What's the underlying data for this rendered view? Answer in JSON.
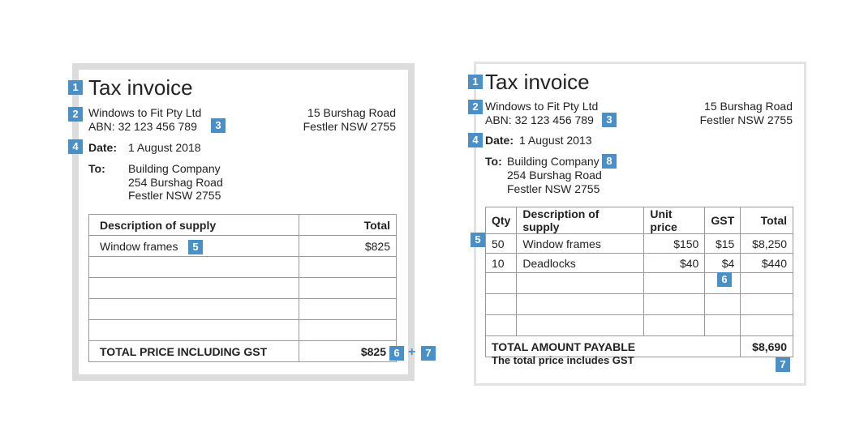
{
  "badges": {
    "b1": "1",
    "b2": "2",
    "b3": "3",
    "b4": "4",
    "b5": "5",
    "b6": "6",
    "b7": "7",
    "b8": "8"
  },
  "connector": "+",
  "left": {
    "title": "Tax invoice",
    "company": "Windows to Fit Pty Ltd",
    "abn": "ABN: 32 123 456 789",
    "address_line1": "15 Burshag Road",
    "address_line2": "Festler NSW 2755",
    "date_label": "Date:",
    "date_value": "1 August 2018",
    "to_label": "To:",
    "to_lines": [
      "Building Company",
      "254 Burshag Road",
      "Festler NSW 2755"
    ],
    "table": {
      "header_desc": "Description of supply",
      "header_total": "Total",
      "row_desc": "Window frames",
      "row_total": "$825",
      "footer_label": "TOTAL PRICE INCLUDING GST",
      "footer_total": "$825"
    }
  },
  "right": {
    "title": "Tax invoice",
    "company": "Windows to Fit Pty Ltd",
    "abn": "ABN: 32 123 456 789",
    "address_line1": "15 Burshag Road",
    "address_line2": "Festler NSW 2755",
    "date_label": "Date:",
    "date_value": "1 August 2013",
    "to_label": "To:",
    "to_lines": [
      "Building Company",
      "254 Burshag Road",
      "Festler NSW 2755"
    ],
    "table": {
      "headers": [
        "Qty",
        "Description of supply",
        "Unit price",
        "GST",
        "Total"
      ],
      "rows": [
        [
          "50",
          "Window frames",
          "$150",
          "$15",
          "$8,250"
        ],
        [
          "10",
          "Deadlocks",
          "$40",
          "$4",
          "$440"
        ]
      ],
      "footer_label": "TOTAL AMOUNT PAYABLE",
      "footer_total": "$8,690"
    },
    "note": "The total price includes GST"
  }
}
